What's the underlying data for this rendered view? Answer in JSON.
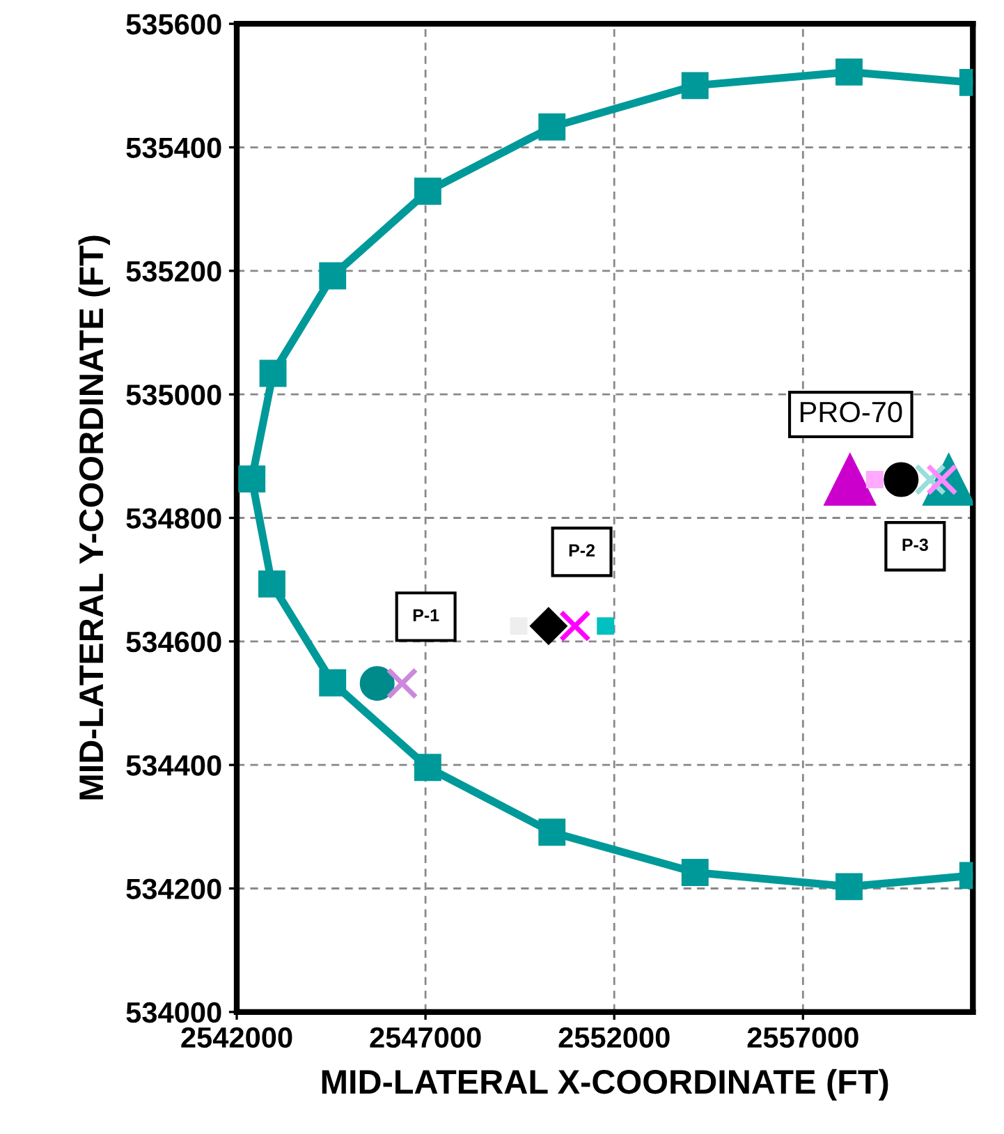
{
  "chart_data": {
    "type": "line",
    "xlabel": "MID-LATERAL X-COORDINATE (FT)",
    "ylabel": "MID-LATERAL Y-COORDINATE (FT)",
    "xlim": [
      2542000,
      2561500
    ],
    "ylim": [
      534000,
      535600
    ],
    "xticks": [
      2542000,
      2547000,
      2552000,
      2557000
    ],
    "yticks": [
      534000,
      534200,
      534400,
      534600,
      534800,
      535000,
      535200,
      535400,
      535600
    ],
    "grid": true,
    "series": [
      {
        "color": "#009999",
        "marker": "square",
        "line_style": "solid",
        "x": [
          2561500,
          2558220,
          2554140,
          2550350,
          2547060,
          2544540,
          2542960,
          2542400,
          2542930,
          2544540,
          2547060,
          2550350,
          2554140,
          2558220,
          2561500
        ],
        "values": [
          535505,
          535522,
          535500,
          535433,
          535329,
          535192,
          535034,
          534863,
          534693,
          534533,
          534396,
          534291,
          534226,
          534203,
          534221
        ]
      },
      {
        "type": "scatter",
        "color": "#008b8b",
        "marker": "circle",
        "x": [
          2545720
        ],
        "values": [
          534532
        ]
      },
      {
        "type": "scatter",
        "color": "#cc88dd",
        "marker": "cross",
        "x": [
          2546380
        ],
        "values": [
          534532
        ]
      },
      {
        "type": "scatter",
        "color": "#eeeeee",
        "marker": "square",
        "x": [
          2549470
        ],
        "values": [
          534625
        ]
      },
      {
        "type": "scatter",
        "color": "#000000",
        "marker": "diamond",
        "x": [
          2550260
        ],
        "values": [
          534625
        ]
      },
      {
        "type": "scatter",
        "color": "#ff00ff",
        "marker": "cross",
        "x": [
          2550960
        ],
        "values": [
          534625
        ]
      },
      {
        "type": "scatter",
        "color": "#00c0c0",
        "marker": "square",
        "x": [
          2551770
        ],
        "values": [
          534625
        ]
      },
      {
        "type": "scatter",
        "color": "#cc00cc",
        "marker": "triangle",
        "x": [
          2558245
        ],
        "values": [
          534862
        ]
      },
      {
        "type": "scatter",
        "color": "#ffaaff",
        "marker": "square",
        "x": [
          2558900
        ],
        "values": [
          534862
        ]
      },
      {
        "type": "scatter",
        "color": "#000000",
        "marker": "circle",
        "x": [
          2559600
        ],
        "values": [
          534862
        ]
      },
      {
        "type": "scatter",
        "color": "#99dddd",
        "marker": "cross",
        "x": [
          2560370
        ],
        "values": [
          534862
        ]
      },
      {
        "type": "scatter",
        "color": "#ff88ff",
        "marker": "cross",
        "x": [
          2560680
        ],
        "values": [
          534862
        ]
      },
      {
        "type": "scatter",
        "color": "#009999",
        "marker": "triangle",
        "x": [
          2560860
        ],
        "values": [
          534862
        ]
      }
    ],
    "annotations": [
      "PRO-70",
      {
        "text": "P-1",
        "x": 2547010,
        "y": 534640
      },
      {
        "text": "P-2",
        "x": 2551140,
        "y": 534745
      },
      {
        "text": "P-3",
        "x": 2559970,
        "y": 534754
      }
    ]
  }
}
